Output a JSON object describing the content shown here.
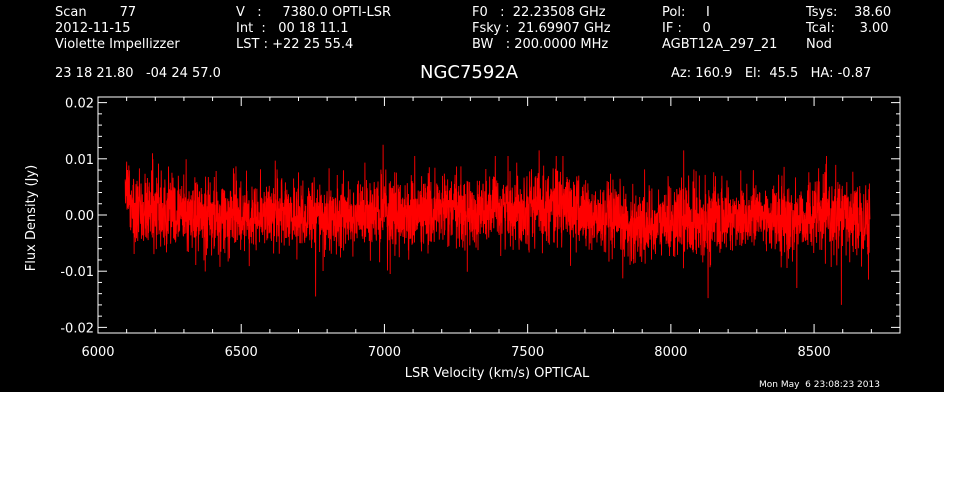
{
  "header": {
    "col1": [
      "Scan        77",
      "2012-11-15",
      "Violette Impellizzer"
    ],
    "col2": [
      "V   :     7380.0 OPTI-LSR",
      "Int  :   00 18 11.1",
      "LST : +22 25 55.4"
    ],
    "col3": [
      "F0   :  22.23508 GHz",
      "Fsky :  21.69907 GHz",
      "BW   : 200.0000 MHz"
    ],
    "col4": [
      "Pol:     I",
      "IF :     0",
      "AGBT12A_297_21"
    ],
    "col5": [
      "Tsys:    38.60",
      "Tcal:      3.00",
      "Nod"
    ],
    "coords": "23 18 21.80   -04 24 57.0",
    "source": "NGC7592A",
    "azel": "Az: 160.9   El:  45.5   HA: -0.87"
  },
  "footer": {
    "timestamp": "Mon May  6 23:08:23 2013"
  },
  "chart_data": {
    "type": "line",
    "xlabel": "LSR Velocity (km/s) OPTICAL",
    "ylabel": "Flux Density (Jy)",
    "xlim": [
      6000,
      8800
    ],
    "ylim": [
      -0.021,
      0.021
    ],
    "xticks": [
      6000,
      6500,
      7000,
      7500,
      8000,
      8500
    ],
    "yticks": [
      -0.02,
      -0.01,
      0.0,
      0.01,
      0.02
    ],
    "xtick_labels": [
      "6000",
      "6500",
      "7000",
      "7500",
      "8000",
      "8500"
    ],
    "ytick_labels": [
      "-0.02",
      "-0.01",
      "0.00",
      "0.01",
      "0.02"
    ],
    "series": [
      {
        "color": "#ff0000",
        "x_start": 6095,
        "x_end": 8695,
        "baseline_knots": {
          "x": [
            6095,
            6200,
            6300,
            6400,
            6500,
            6600,
            6700,
            6800,
            6900,
            7000,
            7100,
            7200,
            7300,
            7400,
            7500,
            7600,
            7700,
            7800,
            7900,
            8000,
            8100,
            8200,
            8300,
            8400,
            8500,
            8600,
            8695
          ],
          "y": [
            0.0025,
            0.001,
            0.0,
            -0.0005,
            0.0,
            0.0005,
            0.0,
            -0.0005,
            0.0,
            0.0005,
            0.0,
            0.001,
            0.0005,
            0.001,
            0.0015,
            0.002,
            0.0,
            -0.0015,
            -0.002,
            -0.001,
            -0.001,
            -0.0005,
            0.0,
            -0.001,
            0.0,
            -0.0005,
            0.0
          ]
        },
        "noise_rms": 0.0032,
        "extremes": [
          {
            "x": 6100,
            "y": 0.0095
          },
          {
            "x": 6190,
            "y": 0.011
          },
          {
            "x": 6760,
            "y": -0.0145
          },
          {
            "x": 6995,
            "y": 0.0125
          },
          {
            "x": 7020,
            "y": -0.0105
          },
          {
            "x": 7540,
            "y": 0.0115
          },
          {
            "x": 7600,
            "y": 0.0105
          },
          {
            "x": 8045,
            "y": 0.0115
          },
          {
            "x": 8130,
            "y": -0.0148
          },
          {
            "x": 8440,
            "y": -0.013
          },
          {
            "x": 8595,
            "y": -0.016
          },
          {
            "x": 8690,
            "y": -0.0115
          }
        ]
      }
    ]
  }
}
